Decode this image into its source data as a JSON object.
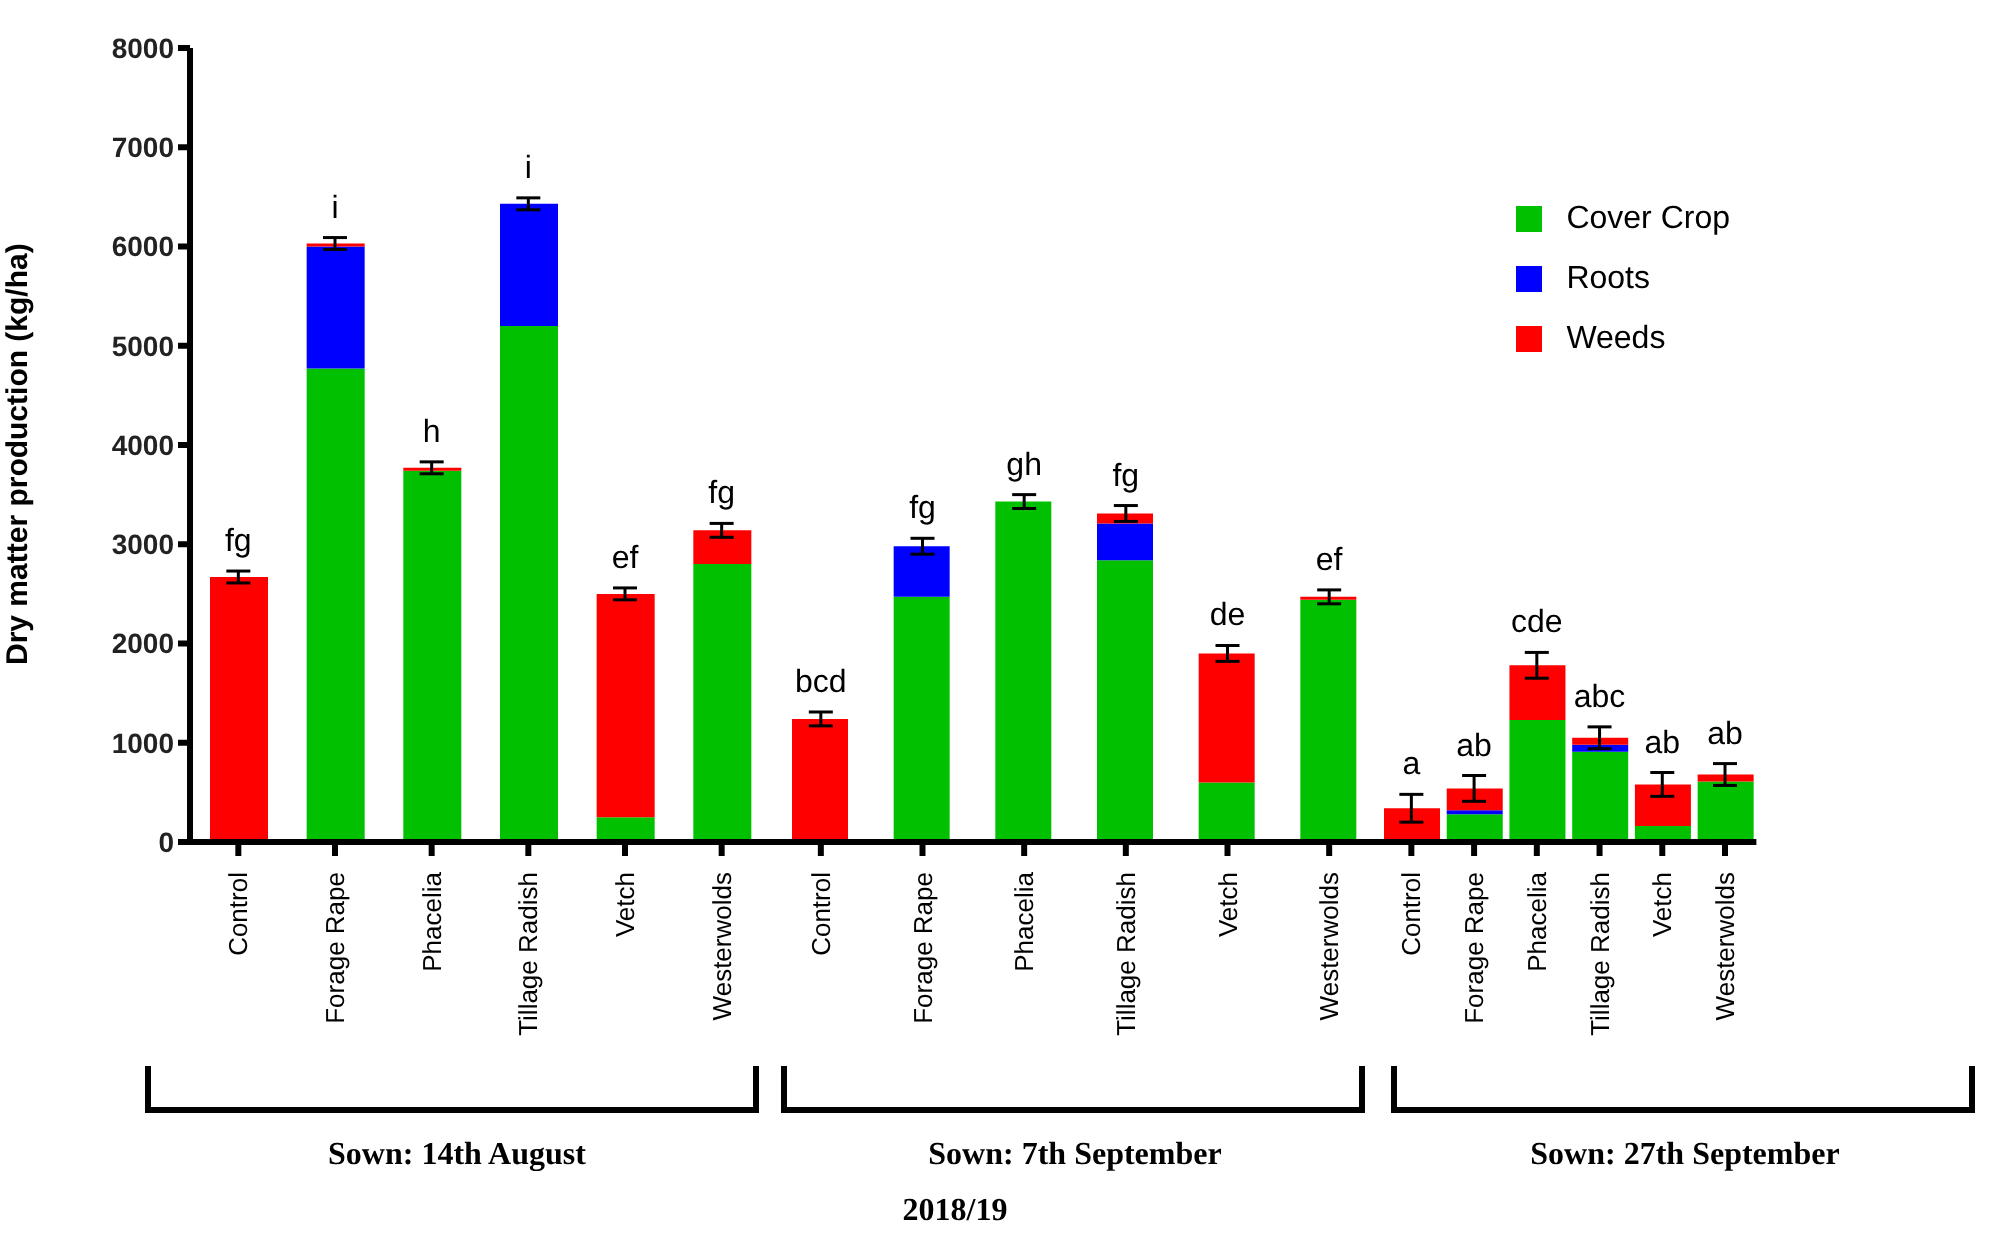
{
  "chart_data": [
    {
      "type": "bar",
      "stacked": true,
      "ylabel": "Dry matter production (kg/ha)",
      "xlabel": "Sown: 14th August",
      "categories": [
        "Control",
        "Forage Rape",
        "Phacelia",
        "Tillage Radish",
        "Vetch",
        "Westerwolds"
      ],
      "ylim": [
        0,
        8000
      ],
      "yticks": [
        0,
        1000,
        2000,
        3000,
        4000,
        5000,
        6000,
        7000,
        8000
      ],
      "series": [
        {
          "color": "#00c000",
          "values": [
            0,
            4770,
            3740,
            5200,
            250,
            2800
          ]
        },
        {
          "color": "#0000ff",
          "values": [
            0,
            1230,
            0,
            1230,
            0,
            0
          ]
        },
        {
          "color": "#ff0000",
          "values": [
            2670,
            30,
            30,
            0,
            2250,
            340
          ],
          "errors": [
            60,
            60,
            60,
            60,
            60,
            70
          ]
        }
      ],
      "annotations": [
        {
          "text": "fg",
          "x": "Control",
          "y": 2670
        },
        {
          "text": "i",
          "x": "Forage Rape",
          "y": 6030
        },
        {
          "text": "h",
          "x": "Phacelia",
          "y": 3770
        },
        {
          "text": "i",
          "x": "Tillage Radish",
          "y": 6430
        },
        {
          "text": "ef",
          "x": "Vetch",
          "y": 2500
        },
        {
          "text": "fg",
          "x": "Westerwolds",
          "y": 3140
        }
      ]
    },
    {
      "type": "bar",
      "stacked": true,
      "xlabel": "Sown: 7th September",
      "categories": [
        "Control",
        "Forage Rape",
        "Phacelia",
        "Tillage Radish",
        "Vetch",
        "Westerwolds"
      ],
      "ylim": [
        0,
        8000
      ],
      "yticks": [
        0,
        1000,
        2000,
        3000,
        4000,
        5000,
        6000,
        7000,
        8000
      ],
      "tick_labels": "x",
      "series": [
        {
          "color": "#00c000",
          "values": [
            0,
            2470,
            3430,
            2840,
            600,
            2440
          ]
        },
        {
          "color": "#0000ff",
          "values": [
            0,
            510,
            0,
            370,
            0,
            0
          ]
        },
        {
          "color": "#ff0000",
          "values": [
            1240,
            0,
            0,
            100,
            1300,
            30
          ],
          "errors": [
            70,
            80,
            70,
            80,
            80,
            70
          ]
        }
      ],
      "annotations": [
        {
          "text": "bcd",
          "x": "Control",
          "y": 1240
        },
        {
          "text": "fg",
          "x": "Forage Rape",
          "y": 2980
        },
        {
          "text": "gh",
          "x": "Phacelia",
          "y": 3430
        },
        {
          "text": "fg",
          "x": "Tillage Radish",
          "y": 3310
        },
        {
          "text": "de",
          "x": "Vetch",
          "y": 1900
        },
        {
          "text": "ef",
          "x": "Westerwolds",
          "y": 2470
        },
        "2018/19"
      ]
    },
    {
      "type": "bar",
      "stacked": true,
      "xlabel": "Sown: 27th September",
      "categories": [
        "Control",
        "Forage Rape",
        "Phacelia",
        "Tillage Radish",
        "Vetch",
        "Westerwolds"
      ],
      "ylim": [
        0,
        8000
      ],
      "yticks": [
        0,
        1000,
        2000,
        3000,
        4000,
        5000,
        6000,
        7000,
        8000
      ],
      "tick_labels": "x",
      "legend": "top right",
      "series": [
        {
          "name": "Cover Crop",
          "color": "#00c000",
          "values": [
            0,
            280,
            1230,
            910,
            160,
            610
          ]
        },
        {
          "name": "Roots",
          "color": "#0000ff",
          "values": [
            0,
            40,
            0,
            70,
            0,
            0
          ]
        },
        {
          "name": "Weeds",
          "color": "#ff0000",
          "values": [
            340,
            220,
            550,
            70,
            420,
            70
          ],
          "errors": [
            140,
            130,
            130,
            110,
            120,
            110
          ]
        }
      ],
      "annotations": [
        {
          "text": "a",
          "x": "Control",
          "y": 340
        },
        {
          "text": "ab",
          "x": "Forage Rape",
          "y": 540
        },
        {
          "text": "cde",
          "x": "Phacelia",
          "y": 1780
        },
        {
          "text": "abc",
          "x": "Tillage Radish",
          "y": 1050
        },
        {
          "text": "ab",
          "x": "Vetch",
          "y": 580
        },
        {
          "text": "ab",
          "x": "Westerwolds",
          "y": 680
        }
      ]
    }
  ]
}
